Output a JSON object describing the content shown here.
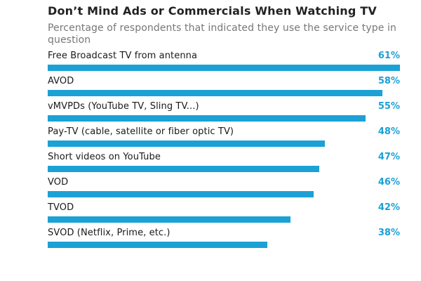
{
  "colors": {
    "bar": "#1ba1d6",
    "value_text": "#1ba1d6"
  },
  "chart_data": {
    "type": "bar",
    "orientation": "horizontal",
    "title": "Don’t Mind Ads or Commercials When Watching TV",
    "subtitle": "Percentage of respondents that indicated they use the service type in question",
    "categories": [
      "Free Broadcast TV from antenna",
      "AVOD",
      "vMVPDs (YouTube TV, Sling TV...)",
      "Pay-TV (cable, satellite or fiber optic TV)",
      "Short videos on YouTube",
      "VOD",
      "TVOD",
      "SVOD (Netflix, Prime, etc.)"
    ],
    "values": [
      61,
      58,
      55,
      48,
      47,
      46,
      42,
      38
    ],
    "value_labels": [
      "61%",
      "58%",
      "55%",
      "48%",
      "47%",
      "46%",
      "42%",
      "38%"
    ],
    "xlim": [
      0,
      61
    ],
    "grid": false,
    "legend": "none"
  }
}
